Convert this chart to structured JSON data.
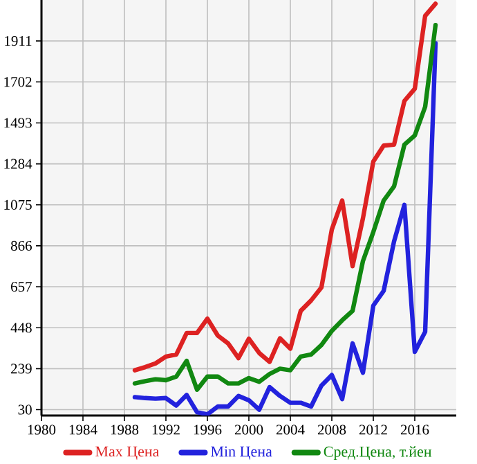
{
  "chart_data": {
    "type": "line",
    "x": [
      1989,
      1990,
      1991,
      1992,
      1993,
      1994,
      1995,
      1996,
      1997,
      1998,
      1999,
      2000,
      2001,
      2002,
      2003,
      2004,
      2005,
      2006,
      2007,
      2008,
      2009,
      2010,
      2011,
      2012,
      2013,
      2014,
      2015,
      2016,
      2017,
      2018
    ],
    "series": [
      {
        "name": "Max Цена",
        "color": "#dd2222",
        "values": [
          231,
          247,
          266,
          301,
          311,
          421,
          421,
          494,
          408,
          368,
          293,
          392,
          319,
          274,
          394,
          341,
          534,
          587,
          654,
          949,
          1097,
          762,
          1006,
          1296,
          1377,
          1382,
          1605,
          1667,
          2039,
          2101
        ]
      },
      {
        "name": "Min Цена",
        "color": "#2222dd",
        "values": [
          94,
          89,
          86,
          89,
          51,
          105,
          17,
          6,
          46,
          46,
          100,
          78,
          30,
          145,
          100,
          65,
          65,
          46,
          153,
          207,
          84,
          368,
          218,
          561,
          636,
          888,
          1075,
          325,
          427,
          1899
        ]
      },
      {
        "name": "Сред.Цена, т.йен",
        "color": "#118811",
        "values": [
          164,
          175,
          185,
          180,
          199,
          279,
          132,
          199,
          199,
          164,
          164,
          191,
          172,
          212,
          239,
          231,
          301,
          311,
          360,
          432,
          486,
          534,
          788,
          936,
          1097,
          1169,
          1382,
          1429,
          1575,
          1992
        ]
      }
    ],
    "xlim": [
      1980,
      2020
    ],
    "xticks": [
      1980,
      1984,
      1988,
      1992,
      1996,
      2000,
      2004,
      2008,
      2012,
      2016
    ],
    "ylim": [
      0,
      2120
    ],
    "yticks": [
      30,
      239,
      448,
      657,
      866,
      1075,
      1284,
      1493,
      1702,
      1911
    ],
    "grid": true,
    "legend": "bottom",
    "marker": "none",
    "line_style": "solid"
  }
}
